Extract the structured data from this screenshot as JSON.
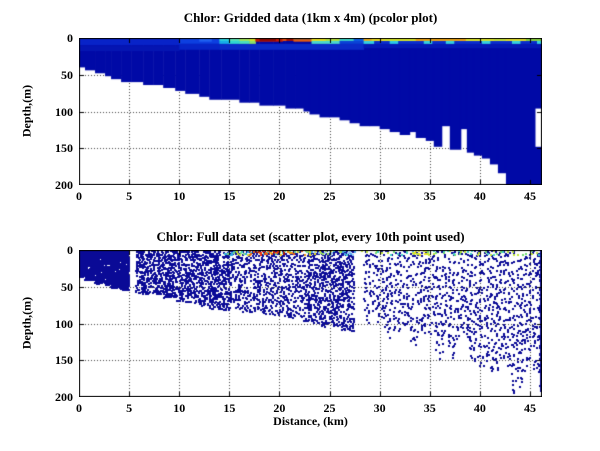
{
  "figure": {
    "background": "#ffffff",
    "top_panel_title": "Chlor: Gridded data (1km x 4m) (pcolor plot)",
    "bottom_panel_title": "Chlor: Full data set (scatter plot, every 10th point used)",
    "depth_axis_label": "Depth,(m)",
    "distance_axis_label": "Distance, (km)"
  },
  "chart_data": [
    {
      "type": "heatmap",
      "title": "Chlor: Gridded data (1km x 4m) (pcolor plot)",
      "xlabel": "",
      "ylabel": "Depth,(m)",
      "xlim": [
        0,
        46.2
      ],
      "ylim": [
        0,
        200
      ],
      "y_inverted": true,
      "xticks": [
        0,
        5,
        10,
        15,
        20,
        25,
        30,
        35,
        40,
        45
      ],
      "yticks": [
        0,
        50,
        100,
        150,
        200
      ],
      "grid": "dotted",
      "grid_color": "#444444",
      "cell_size": {
        "km": 1,
        "m": 4
      },
      "colormap": "jet",
      "body_color": "#0009A6",
      "no_data_color": "#FFFFFF",
      "seafloor_segments": [
        [
          0,
          0.6,
          40
        ],
        [
          0.6,
          1.6,
          44
        ],
        [
          1.6,
          2.6,
          48
        ],
        [
          2.6,
          3.2,
          50
        ],
        [
          3.2,
          4.2,
          54
        ],
        [
          4.2,
          5.2,
          58
        ],
        [
          5.2,
          6.4,
          60
        ],
        [
          6.4,
          7.4,
          62
        ],
        [
          7.4,
          8.4,
          64
        ],
        [
          8.4,
          9.6,
          68
        ],
        [
          9.6,
          10.6,
          72
        ],
        [
          10.6,
          12,
          74
        ],
        [
          12,
          13,
          78
        ],
        [
          13,
          14.2,
          82
        ],
        [
          14.2,
          16,
          84
        ],
        [
          16,
          17,
          86
        ],
        [
          17,
          18,
          88
        ],
        [
          18,
          19.4,
          90
        ],
        [
          19.4,
          20.6,
          92
        ],
        [
          20.6,
          21.6,
          94
        ],
        [
          21.6,
          22.4,
          96
        ],
        [
          22.4,
          23,
          100
        ],
        [
          23,
          24,
          102
        ],
        [
          24,
          25,
          106
        ],
        [
          25,
          26,
          108
        ],
        [
          26,
          27,
          112
        ],
        [
          27,
          28,
          114
        ],
        [
          28,
          29,
          118
        ],
        [
          29,
          30,
          120
        ],
        [
          30,
          31,
          124
        ],
        [
          31,
          32,
          126
        ],
        [
          32,
          33,
          130
        ],
        [
          33,
          33.6,
          126
        ],
        [
          33.6,
          34.6,
          136
        ],
        [
          34.6,
          35.4,
          140
        ],
        [
          35.4,
          36.2,
          148
        ],
        [
          36.2,
          37,
          118
        ],
        [
          37,
          38.1,
          150
        ],
        [
          38.1,
          38.7,
          122
        ],
        [
          38.7,
          39.4,
          154
        ],
        [
          39.4,
          40.2,
          158
        ],
        [
          40.2,
          41,
          164
        ],
        [
          41,
          41.8,
          172
        ],
        [
          41.8,
          42.6,
          182
        ],
        [
          42.6,
          46.2,
          200
        ]
      ],
      "surface_patches": [
        [
          0,
          10,
          0,
          10,
          "#0823C8"
        ],
        [
          0,
          10,
          10,
          18,
          "#0515B2"
        ],
        [
          10,
          14,
          0,
          8,
          "#0D3FE0"
        ],
        [
          10,
          14,
          8,
          16,
          "#0724C6"
        ],
        [
          14,
          28.4,
          8,
          16,
          "#0A2AC8"
        ],
        [
          28.4,
          46.2,
          8,
          14,
          "#0517B4"
        ],
        [
          28.4,
          46.2,
          4,
          8,
          "#0A2ECC"
        ],
        [
          12,
          13.2,
          0,
          5,
          "#1E5FF0"
        ],
        [
          14,
          15,
          0,
          4,
          "#2FD6E0"
        ],
        [
          14,
          15,
          4,
          8,
          "#17ACE8"
        ],
        [
          15,
          16,
          0,
          4,
          "#5FE8B8"
        ],
        [
          15,
          16,
          4,
          8,
          "#2FD6D0"
        ],
        [
          16,
          17,
          0,
          4,
          "#A8EE5E"
        ],
        [
          16,
          17,
          4,
          8,
          "#49DDBE"
        ],
        [
          17,
          17.6,
          0,
          4,
          "#DDED2A"
        ],
        [
          17,
          17.6,
          4,
          8,
          "#8EE066"
        ],
        [
          17.6,
          20.3,
          0,
          5,
          "#C41A00"
        ],
        [
          18,
          19.6,
          1,
          4,
          "#8F0A00"
        ],
        [
          20.3,
          20.7,
          0,
          4,
          "#E8500A"
        ],
        [
          20.7,
          21.4,
          0,
          4,
          "#A81200"
        ],
        [
          21.4,
          23.2,
          0,
          2,
          "#EFE41A"
        ],
        [
          21.4,
          23.2,
          2,
          5,
          "#E85A0A"
        ],
        [
          23.2,
          24.6,
          0,
          4,
          "#F2E81E"
        ],
        [
          24.6,
          26,
          0,
          4,
          "#BCE93C"
        ],
        [
          26,
          27.4,
          0,
          4,
          "#3FDCCB"
        ],
        [
          23.2,
          26,
          4,
          8,
          "#49D8CC"
        ],
        [
          26,
          28.4,
          4,
          8,
          "#0A43D6"
        ],
        [
          27.4,
          28.4,
          0,
          4,
          "#0A62E8"
        ],
        [
          28.4,
          29.2,
          0,
          4,
          "#F2B31E"
        ],
        [
          29.2,
          30.4,
          0,
          4,
          "#EFE01E"
        ],
        [
          30.4,
          33.6,
          0,
          4,
          "#DDEB26"
        ],
        [
          33.6,
          38.6,
          0,
          4,
          "#F5A912"
        ],
        [
          38.6,
          41.4,
          0,
          4,
          "#E3EB28"
        ],
        [
          41.4,
          42.6,
          0,
          4,
          "#CBE936"
        ],
        [
          42.6,
          44.6,
          0,
          4,
          "#E8E62A"
        ],
        [
          44.6,
          46.2,
          0,
          4,
          "#8CD83C"
        ],
        [
          28.4,
          29.4,
          4,
          8,
          "#33CFE0"
        ],
        [
          31,
          31.8,
          4,
          8,
          "#2BC8E8"
        ],
        [
          34.4,
          35.2,
          4,
          8,
          "#35D0DC"
        ],
        [
          36.6,
          37.4,
          4,
          8,
          "#35D0DC"
        ],
        [
          40.2,
          41,
          4,
          8,
          "#35D0DC"
        ],
        [
          43.2,
          44,
          4,
          8,
          "#35D0DC"
        ],
        [
          45.7,
          46.2,
          4,
          8,
          "#35D0DC"
        ]
      ],
      "holes": [
        [
          45.55,
          46.2,
          96,
          148
        ]
      ]
    },
    {
      "type": "scatter",
      "title": "Chlor: Full data set (scatter plot, every 10th point used)",
      "xlabel": "Distance, (km)",
      "ylabel": "Depth,(m)",
      "xlim": [
        0,
        46.2
      ],
      "ylim": [
        0,
        200
      ],
      "y_inverted": true,
      "xticks": [
        0,
        5,
        10,
        15,
        20,
        25,
        30,
        35,
        40,
        45
      ],
      "yticks": [
        0,
        50,
        100,
        150,
        200
      ],
      "grid": "dotted",
      "grid_color": "#444444",
      "point_color": "#0A0A96",
      "point_size": 2,
      "depth_offset": -2,
      "gaps": [
        [
          5.0,
          5.6
        ],
        [
          27.4,
          28.2
        ]
      ],
      "density_regions": [
        {
          "x0": 0.05,
          "x1": 5.0,
          "col_spacing": 0.1,
          "depth_step": 1.5,
          "prob": 0.82,
          "dashed": false
        },
        {
          "x0": 5.6,
          "x1": 15,
          "col_spacing": 0.17,
          "depth_step": 2.2,
          "prob": 0.58,
          "dashed": false
        },
        {
          "x0": 15,
          "x1": 23,
          "col_spacing": 0.22,
          "depth_step": 2.6,
          "prob": 0.5,
          "dashed": false
        },
        {
          "x0": 23,
          "x1": 27.4,
          "col_spacing": 0.2,
          "depth_step": 2.4,
          "prob": 0.6,
          "dashed": false
        },
        {
          "x0": 28.2,
          "x1": 46.0,
          "col_spacing": 0.42,
          "depth_step": 2.0,
          "prob": 0.72,
          "dashed": true
        }
      ],
      "edge_profile": {
        "x": 46.07,
        "max_depth": 193,
        "step": 1.3,
        "prob": 0.95
      },
      "surface_depth_max": 7,
      "surface_zones": [
        {
          "x0": 14.6,
          "x1": 17,
          "step": 0.2,
          "n": 2,
          "colors": [
            "#3FD6C6",
            "#7FE080",
            "#CFE830",
            "#2FA8E8"
          ]
        },
        {
          "x0": 17,
          "x1": 20.5,
          "step": 0.18,
          "n": 3,
          "colors": [
            "#E83010",
            "#F2700A",
            "#EFD018",
            "#B01000",
            "#3FD6C6"
          ]
        },
        {
          "x0": 20.5,
          "x1": 23,
          "step": 0.2,
          "n": 2,
          "colors": [
            "#F2940A",
            "#EFE018",
            "#E85010",
            "#6FD890"
          ]
        },
        {
          "x0": 23,
          "x1": 27.4,
          "step": 0.2,
          "n": 2,
          "colors": [
            "#3FD6C6",
            "#9FE55A",
            "#EFE018",
            "#49A8F0",
            "#99CCF5"
          ]
        },
        {
          "x0": 28.2,
          "x1": 33.2,
          "step": 0.4,
          "n": 2,
          "colors": [
            "#3FD6C6",
            "#6FDD70",
            "#BFE838",
            "#49A8F0"
          ]
        },
        {
          "x0": 33.2,
          "x1": 34.8,
          "step": 0.3,
          "n": 3,
          "colors": [
            "#EFE018",
            "#D8E828",
            "#BFE838"
          ]
        },
        {
          "x0": 34.8,
          "x1": 46.2,
          "step": 0.4,
          "n": 2,
          "colors": [
            "#3FD6C6",
            "#6FDD70",
            "#BFE838"
          ]
        }
      ]
    }
  ]
}
